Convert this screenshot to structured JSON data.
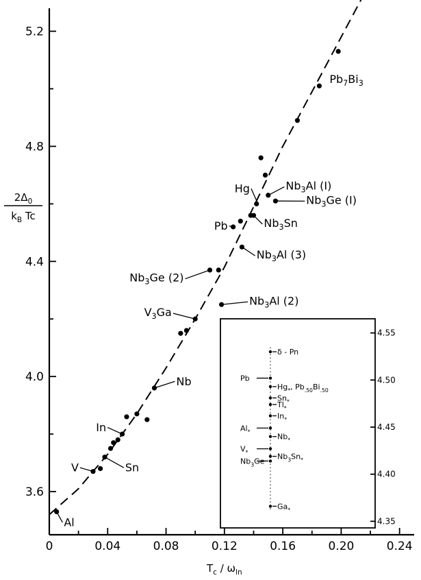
{
  "chart_data": {
    "type": "scatter",
    "x_axis": {
      "label_main": "T",
      "label_sub1": "c",
      "label_sep": " / ω",
      "label_sub2": "ln",
      "range": [
        0,
        0.25
      ],
      "ticks": [
        0,
        0.04,
        0.08,
        0.12,
        0.16,
        0.2,
        0.24
      ],
      "tick_labels": [
        "0",
        "0.04",
        "0.08",
        "0.12",
        "0.16",
        "0.20",
        "0.24"
      ]
    },
    "y_axis": {
      "label_numerator": "2Δ",
      "label_numerator_sub": "0",
      "label_denominator": "k",
      "label_denominator_sub": "B",
      "label_denominator_tail": " Tc",
      "range": [
        3.45,
        5.28
      ],
      "ticks": [
        3.6,
        4.0,
        4.4,
        4.8,
        5.2
      ],
      "tick_labels": [
        "3.6",
        "4.0",
        "4.4",
        "4.8",
        "5.2"
      ]
    },
    "points": [
      {
        "x": 0.005,
        "y": 3.53
      },
      {
        "x": 0.03,
        "y": 3.67
      },
      {
        "x": 0.035,
        "y": 3.68
      },
      {
        "x": 0.038,
        "y": 3.72
      },
      {
        "x": 0.042,
        "y": 3.75
      },
      {
        "x": 0.044,
        "y": 3.77
      },
      {
        "x": 0.047,
        "y": 3.78
      },
      {
        "x": 0.05,
        "y": 3.8
      },
      {
        "x": 0.053,
        "y": 3.86
      },
      {
        "x": 0.06,
        "y": 3.87
      },
      {
        "x": 0.067,
        "y": 3.85
      },
      {
        "x": 0.072,
        "y": 3.96
      },
      {
        "x": 0.09,
        "y": 4.15
      },
      {
        "x": 0.094,
        "y": 4.16
      },
      {
        "x": 0.1,
        "y": 4.2
      },
      {
        "x": 0.11,
        "y": 4.37
      },
      {
        "x": 0.116,
        "y": 4.37
      },
      {
        "x": 0.118,
        "y": 4.25
      },
      {
        "x": 0.126,
        "y": 4.52
      },
      {
        "x": 0.131,
        "y": 4.54
      },
      {
        "x": 0.132,
        "y": 4.45
      },
      {
        "x": 0.138,
        "y": 4.56
      },
      {
        "x": 0.14,
        "y": 4.56
      },
      {
        "x": 0.142,
        "y": 4.6
      },
      {
        "x": 0.145,
        "y": 4.76
      },
      {
        "x": 0.148,
        "y": 4.7
      },
      {
        "x": 0.15,
        "y": 4.63
      },
      {
        "x": 0.155,
        "y": 4.61
      },
      {
        "x": 0.17,
        "y": 4.89
      },
      {
        "x": 0.185,
        "y": 5.01
      },
      {
        "x": 0.198,
        "y": 5.13
      }
    ],
    "fit_curve": [
      [
        0.0,
        3.52
      ],
      [
        0.02,
        3.61
      ],
      [
        0.04,
        3.73
      ],
      [
        0.06,
        3.87
      ],
      [
        0.08,
        4.03
      ],
      [
        0.1,
        4.2
      ],
      [
        0.12,
        4.38
      ],
      [
        0.14,
        4.59
      ],
      [
        0.16,
        4.8
      ],
      [
        0.18,
        4.99
      ],
      [
        0.2,
        5.18
      ],
      [
        0.22,
        5.37
      ]
    ],
    "labels": [
      {
        "text": "Pb",
        "sub": "7",
        "text2": "Bi",
        "sub2": "3",
        "x": 0.192,
        "y": 5.02
      },
      {
        "text": "Hg",
        "x": 0.127,
        "y": 4.64,
        "lx": 0.143,
        "ly": 4.6
      },
      {
        "text": "Nb",
        "sub": "3",
        "text2": "Al (I)",
        "x": 0.162,
        "y": 4.65,
        "lx": 0.15,
        "ly": 4.63
      },
      {
        "text": "Nb",
        "sub": "3",
        "text2": "Ge (I)",
        "x": 0.176,
        "y": 4.6,
        "lx": 0.156,
        "ly": 4.61
      },
      {
        "text": "Pb",
        "x": 0.113,
        "y": 4.51,
        "lx": 0.126,
        "ly": 4.52
      },
      {
        "text": "Nb",
        "sub": "3",
        "text2": "Sn",
        "x": 0.147,
        "y": 4.52,
        "lx": 0.14,
        "ly": 4.56
      },
      {
        "text": "Nb",
        "sub": "3",
        "text2": "Al (3)",
        "x": 0.142,
        "y": 4.41,
        "lx": 0.132,
        "ly": 4.45
      },
      {
        "text": "Nb",
        "sub": "3",
        "text2": "Ge (2)",
        "x": 0.055,
        "y": 4.33,
        "lx": 0.11,
        "ly": 4.37
      },
      {
        "text": "Nb",
        "sub": "3",
        "text2": "Al (2)",
        "x": 0.137,
        "y": 4.25,
        "lx": 0.118,
        "ly": 4.25
      },
      {
        "text": "V",
        "sub": "3",
        "text2": "Ga",
        "x": 0.065,
        "y": 4.21,
        "lx": 0.1,
        "ly": 4.2
      },
      {
        "text": "Nb",
        "x": 0.087,
        "y": 3.97,
        "lx": 0.072,
        "ly": 3.96
      },
      {
        "text": "In",
        "x": 0.032,
        "y": 3.81,
        "lx": 0.05,
        "ly": 3.8
      },
      {
        "text": "V",
        "x": 0.015,
        "y": 3.67,
        "lx": 0.03,
        "ly": 3.67
      },
      {
        "text": "Sn",
        "x": 0.052,
        "y": 3.67,
        "lx": 0.038,
        "ly": 3.72
      },
      {
        "text": "Al",
        "x": 0.01,
        "y": 3.48,
        "lx": 0.005,
        "ly": 3.53
      }
    ],
    "inset": {
      "y_range": [
        4.343,
        4.565
      ],
      "ticks": [
        4.35,
        4.4,
        4.45,
        4.5,
        4.55
      ],
      "tick_labels": [
        "4.35",
        "4.40",
        "4.45",
        "4.50",
        "4.55"
      ],
      "points": [
        {
          "text": "δ - Pn",
          "y": 4.53
        },
        {
          "text": "Pb",
          "y": 4.502
        },
        {
          "text": "Hg",
          "sub": "*",
          "text2": ", Pb",
          "sub2": ".50",
          "text3": "Bi",
          "sub3": ".50",
          "y": 4.493
        },
        {
          "text": "Sn",
          "sub": "*",
          "y": 4.481
        },
        {
          "text": "Tl",
          "sub": "*",
          "y": 4.474
        },
        {
          "text": "In",
          "sub": "*",
          "y": 4.462
        },
        {
          "text": "Al",
          "sub": "*",
          "y": 4.449
        },
        {
          "text": "Nb",
          "sub": "*",
          "y": 4.44
        },
        {
          "text": "V",
          "sub": "*",
          "y": 4.427
        },
        {
          "text": "Nb",
          "sub": "3",
          "text2": "Sn",
          "sub2": "*",
          "y": 4.419
        },
        {
          "text": "Nb",
          "sub": "3",
          "text2": "Ge",
          "y": 4.414
        },
        {
          "text": "Ga",
          "sub": "*",
          "y": 4.366
        }
      ]
    }
  }
}
